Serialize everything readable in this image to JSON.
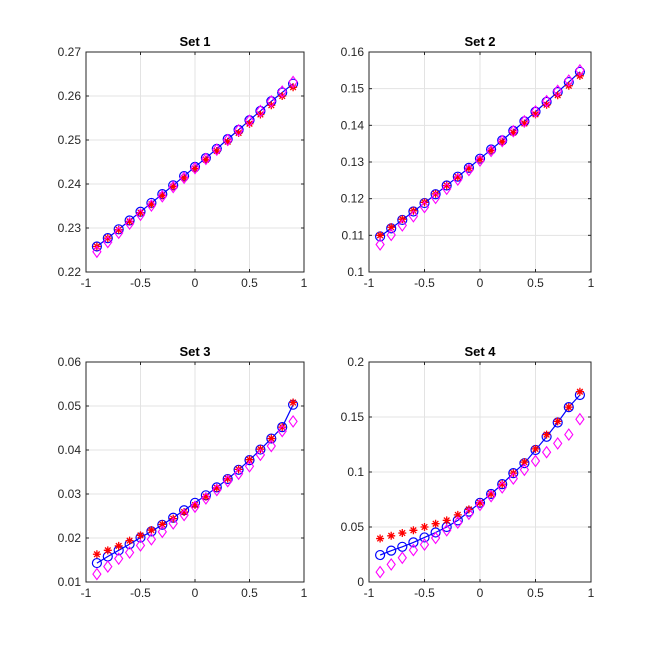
{
  "chart_data": [
    {
      "type": "line",
      "title": "Set 1",
      "xlim": [
        -1,
        1
      ],
      "ylim": [
        0.22,
        0.27
      ],
      "xticks": [
        "-1",
        "-0.5",
        "0",
        "0.5",
        "1"
      ],
      "yticks": [
        "0.22",
        "0.23",
        "0.24",
        "0.25",
        "0.26",
        "0.27"
      ],
      "grid": true,
      "x": [
        -0.9,
        -0.8,
        -0.7,
        -0.6,
        -0.5,
        -0.4,
        -0.3,
        -0.2,
        -0.1,
        0.0,
        0.1,
        0.2,
        0.3,
        0.4,
        0.5,
        0.6,
        0.7,
        0.8,
        0.9
      ],
      "series": [
        {
          "style": "blue-line-circle",
          "color": "#0000ff",
          "values": [
            0.2258,
            0.2277,
            0.2297,
            0.2317,
            0.2337,
            0.2357,
            0.2377,
            0.2397,
            0.2418,
            0.2439,
            0.2459,
            0.248,
            0.2502,
            0.2523,
            0.2545,
            0.2566,
            0.2588,
            0.2608,
            0.2628
          ]
        },
        {
          "style": "red-star",
          "color": "#ff0000",
          "values": [
            0.2258,
            0.2277,
            0.2296,
            0.2315,
            0.2335,
            0.2354,
            0.2374,
            0.2394,
            0.2414,
            0.2435,
            0.2455,
            0.2475,
            0.2496,
            0.2516,
            0.2537,
            0.2558,
            0.2579,
            0.26,
            0.262
          ]
        },
        {
          "style": "magenta-diamond",
          "color": "#ff00ff",
          "values": [
            0.2246,
            0.2268,
            0.2289,
            0.231,
            0.233,
            0.2351,
            0.2372,
            0.2393,
            0.2414,
            0.2436,
            0.2457,
            0.2478,
            0.25,
            0.2522,
            0.2544,
            0.2566,
            0.2588,
            0.261,
            0.2632
          ]
        }
      ]
    },
    {
      "type": "line",
      "title": "Set 2",
      "xlim": [
        -1,
        1
      ],
      "ylim": [
        0.1,
        0.16
      ],
      "xticks": [
        "-1",
        "-0.5",
        "0",
        "0.5",
        "1"
      ],
      "yticks": [
        "0.1",
        "0.11",
        "0.12",
        "0.13",
        "0.14",
        "0.15",
        "0.16"
      ],
      "grid": true,
      "x": [
        -0.9,
        -0.8,
        -0.7,
        -0.6,
        -0.5,
        -0.4,
        -0.3,
        -0.2,
        -0.1,
        0.0,
        0.1,
        0.2,
        0.3,
        0.4,
        0.5,
        0.6,
        0.7,
        0.8,
        0.9
      ],
      "series": [
        {
          "style": "blue-line-circle",
          "color": "#0000ff",
          "values": [
            0.1097,
            0.1119,
            0.1142,
            0.1165,
            0.1188,
            0.1212,
            0.1236,
            0.126,
            0.1284,
            0.1309,
            0.1334,
            0.1359,
            0.1385,
            0.1411,
            0.1437,
            0.1464,
            0.1491,
            0.1518,
            0.1546
          ]
        },
        {
          "style": "red-star",
          "color": "#ff0000",
          "values": [
            0.11,
            0.1122,
            0.1144,
            0.1167,
            0.119,
            0.1213,
            0.1236,
            0.1259,
            0.1283,
            0.1307,
            0.1331,
            0.1355,
            0.138,
            0.1405,
            0.143,
            0.1456,
            0.1482,
            0.1508,
            0.1535
          ]
        },
        {
          "style": "magenta-diamond",
          "color": "#ff00ff",
          "values": [
            0.1075,
            0.1101,
            0.1127,
            0.1152,
            0.1177,
            0.1202,
            0.1227,
            0.1252,
            0.1278,
            0.1304,
            0.133,
            0.1357,
            0.1384,
            0.1411,
            0.1438,
            0.1466,
            0.1494,
            0.1522,
            0.155
          ]
        }
      ]
    },
    {
      "type": "line",
      "title": "Set 3",
      "xlim": [
        -1,
        1
      ],
      "ylim": [
        0.01,
        0.06
      ],
      "xticks": [
        "-1",
        "-0.5",
        "0",
        "0.5",
        "1"
      ],
      "yticks": [
        "0.01",
        "0.02",
        "0.03",
        "0.04",
        "0.05",
        "0.06"
      ],
      "grid": true,
      "x": [
        -0.9,
        -0.8,
        -0.7,
        -0.6,
        -0.5,
        -0.4,
        -0.3,
        -0.2,
        -0.1,
        0.0,
        0.1,
        0.2,
        0.3,
        0.4,
        0.5,
        0.6,
        0.7,
        0.8,
        0.9
      ],
      "series": [
        {
          "style": "blue-line-circle",
          "color": "#0000ff",
          "values": [
            0.0143,
            0.0158,
            0.0172,
            0.0186,
            0.0201,
            0.0215,
            0.023,
            0.0246,
            0.0263,
            0.028,
            0.0297,
            0.0315,
            0.0334,
            0.0355,
            0.0377,
            0.0401,
            0.0426,
            0.0452,
            0.0503
          ]
        },
        {
          "style": "red-star",
          "color": "#ff0000",
          "values": [
            0.0163,
            0.0172,
            0.0182,
            0.0194,
            0.0206,
            0.0218,
            0.0231,
            0.0244,
            0.0259,
            0.0275,
            0.0294,
            0.0314,
            0.0335,
            0.0356,
            0.0378,
            0.0402,
            0.0426,
            0.0452,
            0.0508
          ]
        },
        {
          "style": "magenta-diamond",
          "color": "#ff00ff",
          "values": [
            0.0118,
            0.0135,
            0.0153,
            0.0167,
            0.0183,
            0.0197,
            0.0214,
            0.0233,
            0.0252,
            0.0271,
            0.029,
            0.0309,
            0.0329,
            0.0346,
            0.0363,
            0.0389,
            0.0409,
            0.0443,
            0.0465
          ]
        }
      ]
    },
    {
      "type": "line",
      "title": "Set 4",
      "xlim": [
        -1,
        1
      ],
      "ylim": [
        0,
        0.2
      ],
      "xticks": [
        "-1",
        "-0.5",
        "0",
        "0.5",
        "1"
      ],
      "yticks": [
        "0",
        "0.05",
        "0.1",
        "0.15",
        "0.2"
      ],
      "grid": true,
      "x": [
        -0.9,
        -0.8,
        -0.7,
        -0.6,
        -0.5,
        -0.4,
        -0.3,
        -0.2,
        -0.1,
        0.0,
        0.1,
        0.2,
        0.3,
        0.4,
        0.5,
        0.6,
        0.7,
        0.8,
        0.9
      ],
      "series": [
        {
          "style": "blue-line-circle",
          "color": "#0000ff",
          "values": [
            0.0245,
            0.0285,
            0.032,
            0.036,
            0.0405,
            0.045,
            0.05,
            0.056,
            0.064,
            0.072,
            0.08,
            0.089,
            0.099,
            0.108,
            0.12,
            0.132,
            0.145,
            0.159,
            0.17
          ]
        },
        {
          "style": "red-star",
          "color": "#ff0000",
          "values": [
            0.0395,
            0.042,
            0.0445,
            0.047,
            0.05,
            0.053,
            0.056,
            0.061,
            0.066,
            0.072,
            0.08,
            0.089,
            0.099,
            0.109,
            0.121,
            0.134,
            0.146,
            0.159,
            0.173
          ]
        },
        {
          "style": "magenta-diamond",
          "color": "#ff00ff",
          "values": [
            0.009,
            0.016,
            0.022,
            0.029,
            0.034,
            0.04,
            0.047,
            0.054,
            0.062,
            0.07,
            0.078,
            0.086,
            0.094,
            0.102,
            0.11,
            0.118,
            0.126,
            0.134,
            0.148
          ]
        }
      ]
    }
  ]
}
